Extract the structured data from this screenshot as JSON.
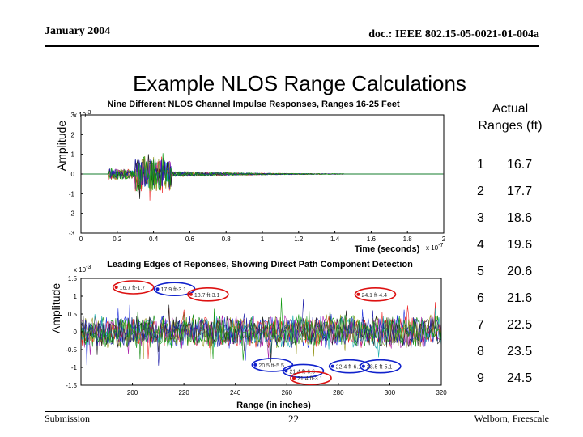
{
  "header": {
    "date": "January 2004",
    "doc_id": "doc.: IEEE 802.15-05-0021-01-004a"
  },
  "title": "Example NLOS Range Calculations",
  "footer": {
    "left": "Submission",
    "page": "22",
    "right": "Welborn, Freescale"
  },
  "ranges_table": {
    "header": "Actual Ranges (ft)",
    "rows": [
      {
        "idx": "1",
        "value": "16.7"
      },
      {
        "idx": "2",
        "value": "17.7"
      },
      {
        "idx": "3",
        "value": "18.6"
      },
      {
        "idx": "4",
        "value": "19.6"
      },
      {
        "idx": "5",
        "value": "20.6"
      },
      {
        "idx": "6",
        "value": "21.6"
      },
      {
        "idx": "7",
        "value": "22.5"
      },
      {
        "idx": "8",
        "value": "23.5"
      },
      {
        "idx": "9",
        "value": "24.5"
      }
    ]
  },
  "colors": {
    "series": [
      "#2233dd",
      "#118811",
      "#ee2222",
      "#11aaaa",
      "#aa22aa",
      "#999922",
      "#222222",
      "#2222aa",
      "#119911"
    ],
    "highlight_red": "#dd1111",
    "highlight_blue": "#1122cc"
  },
  "chart_data": [
    {
      "type": "line",
      "title": "Nine Different NLOS Channel Impulse Responses, Ranges 16-25 Feet",
      "xlabel": "Time (seconds)",
      "x_exponent": "x 10",
      "x_exponent_power": "-7",
      "ylabel": "Amplitude",
      "y_exponent": "x 10",
      "y_exponent_power": "-3",
      "xlim": [
        0,
        2
      ],
      "ylim": [
        -3,
        3
      ],
      "x_ticks": [
        "0",
        "0.2",
        "0.4",
        "0.6",
        "0.8",
        "1",
        "1.2",
        "1.4",
        "1.6",
        "1.8",
        "2"
      ],
      "y_ticks": [
        "3",
        "2",
        "1",
        "0",
        "-1",
        "-2",
        "-3"
      ],
      "grid": false,
      "series_count": 9,
      "signal_window": [
        0.15,
        1.45
      ],
      "peak_time": [
        0.3,
        0.5
      ],
      "peak_amplitude": [
        -1.4,
        1.3
      ]
    },
    {
      "type": "line",
      "title": "Leading Edges of Reponses, Showing Direct Path Component Detection",
      "xlabel": "Range (in inches)",
      "ylabel": "Amplitude",
      "y_exponent": "x 10",
      "y_exponent_power": "-3",
      "xlim": [
        180,
        320
      ],
      "ylim": [
        -1.5,
        1.5
      ],
      "x_ticks": [
        "200",
        "220",
        "240",
        "260",
        "280",
        "300",
        "320"
      ],
      "y_ticks": [
        "1.5",
        "1",
        "0.5",
        "0",
        "-0.5",
        "-1",
        "-1.5"
      ],
      "grid": false,
      "series_count": 9,
      "annotations": [
        {
          "label": "16.7 ft-1.7",
          "x": 195,
          "y": 1.25,
          "color": "red"
        },
        {
          "label": "17.9 ft-3.1",
          "x": 211,
          "y": 1.2,
          "color": "blue"
        },
        {
          "label": "18.7 ft-3.1",
          "x": 224,
          "y": 1.05,
          "color": "red"
        },
        {
          "label": "24.1 ft-4.4",
          "x": 289,
          "y": 1.05,
          "color": "red"
        },
        {
          "label": "20.5 ft-5.5",
          "x": 249,
          "y": -0.93,
          "color": "blue"
        },
        {
          "label": "21.4 ft-6.6",
          "x": 261,
          "y": -1.1,
          "color": "blue"
        },
        {
          "label": "21.4 ft-3.1",
          "x": 264,
          "y": -1.3,
          "color": "red"
        },
        {
          "label": "22.4 ft-6.1",
          "x": 279,
          "y": -0.97,
          "color": "blue"
        },
        {
          "label": "23.5 ft-5.1",
          "x": 291,
          "y": -0.97,
          "color": "blue"
        }
      ]
    }
  ]
}
